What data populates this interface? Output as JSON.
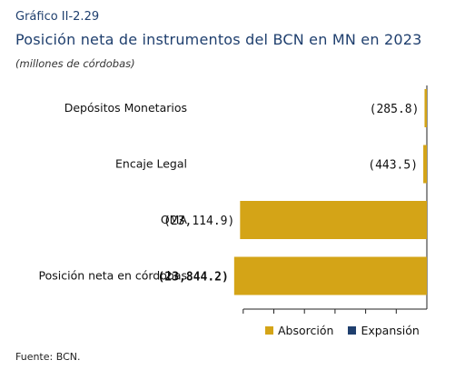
{
  "header": {
    "label": "Gráfico II-2.29",
    "title": "Posición neta de instrumentos del BCN en MN en 2023",
    "subtitle": "(millones de córdobas)"
  },
  "source": "Fuente: BCN.",
  "colors": {
    "absorcion": "#D4A417",
    "expansion": "#1F3F6E"
  },
  "chart_data": {
    "type": "bar",
    "orientation": "horizontal",
    "categories": [
      "Depósitos Monetarios",
      "Encaje Legal",
      "OMA",
      "Posición neta en córdobas"
    ],
    "values": [
      -285.8,
      -443.5,
      -23114.9,
      -23844.2
    ],
    "value_labels": [
      "(285.8)",
      "(443.5)",
      "(23,114.9)",
      "(23,844.2)"
    ],
    "series": [
      {
        "name": "Absorción",
        "color": "#D4A417"
      },
      {
        "name": "Expansión",
        "color": "#1F3F6E"
      }
    ],
    "xlim": [
      -24500,
      0
    ],
    "grid": false,
    "legend_position": "bottom"
  }
}
